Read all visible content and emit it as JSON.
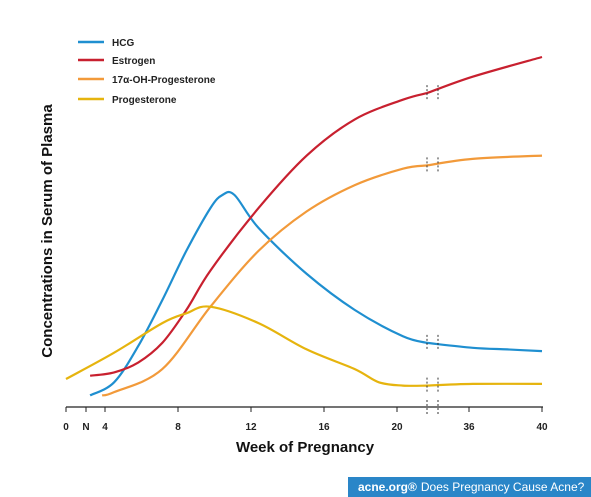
{
  "chart_data": {
    "type": "line",
    "xlabel": "Week of Pregnancy",
    "ylabel": "Concentrations in Serum of Plasma",
    "x_ticks": [
      "0",
      "N",
      "4",
      "8",
      "12",
      "16",
      "20",
      "36",
      "40"
    ],
    "axis_break": "between 20 and 36",
    "grid": false,
    "legend_position": "top-left",
    "series": [
      {
        "name": "HCG",
        "color": "#1f8fd0",
        "points": [
          [
            1,
            0.02
          ],
          [
            2,
            0.06
          ],
          [
            3,
            0.17
          ],
          [
            4,
            0.31
          ],
          [
            5,
            0.46
          ],
          [
            6,
            0.59
          ],
          [
            6.5,
            0.63
          ],
          [
            7,
            0.63
          ],
          [
            8,
            0.53
          ],
          [
            10,
            0.39
          ],
          [
            12,
            0.28
          ],
          [
            14,
            0.2
          ],
          [
            15,
            0.18
          ],
          [
            16,
            0.165
          ],
          [
            17,
            0.16
          ],
          [
            18,
            0.155
          ]
        ]
      },
      {
        "name": "Estrogen",
        "color": "#c8202f",
        "points": [
          [
            1,
            0.08
          ],
          [
            2,
            0.09
          ],
          [
            3,
            0.12
          ],
          [
            4,
            0.18
          ],
          [
            5,
            0.28
          ],
          [
            6,
            0.4
          ],
          [
            8,
            0.59
          ],
          [
            10,
            0.75
          ],
          [
            12,
            0.86
          ],
          [
            14,
            0.92
          ],
          [
            15,
            0.94
          ],
          [
            16,
            0.99
          ],
          [
            18,
            1.05
          ]
        ]
      },
      {
        "name": "17α-OH-Progesterone",
        "color": "#f29a3a",
        "points": [
          [
            1.5,
            0.02
          ],
          [
            2,
            0.03
          ],
          [
            4,
            0.1
          ],
          [
            6,
            0.29
          ],
          [
            8,
            0.46
          ],
          [
            10,
            0.58
          ],
          [
            12,
            0.66
          ],
          [
            14,
            0.71
          ],
          [
            15,
            0.72
          ],
          [
            16,
            0.74
          ],
          [
            18,
            0.75
          ]
        ]
      },
      {
        "name": "Progesterone",
        "color": "#e6b40e",
        "points": [
          [
            0,
            0.07
          ],
          [
            2,
            0.15
          ],
          [
            4,
            0.24
          ],
          [
            5,
            0.27
          ],
          [
            6,
            0.29
          ],
          [
            8,
            0.24
          ],
          [
            10,
            0.16
          ],
          [
            12,
            0.1
          ],
          [
            13,
            0.06
          ],
          [
            14,
            0.05
          ],
          [
            15,
            0.05
          ],
          [
            16,
            0.055
          ],
          [
            18,
            0.055
          ]
        ]
      }
    ]
  },
  "footer": {
    "brand": "acne.org®",
    "caption": "Does Pregnancy Cause Acne?"
  }
}
